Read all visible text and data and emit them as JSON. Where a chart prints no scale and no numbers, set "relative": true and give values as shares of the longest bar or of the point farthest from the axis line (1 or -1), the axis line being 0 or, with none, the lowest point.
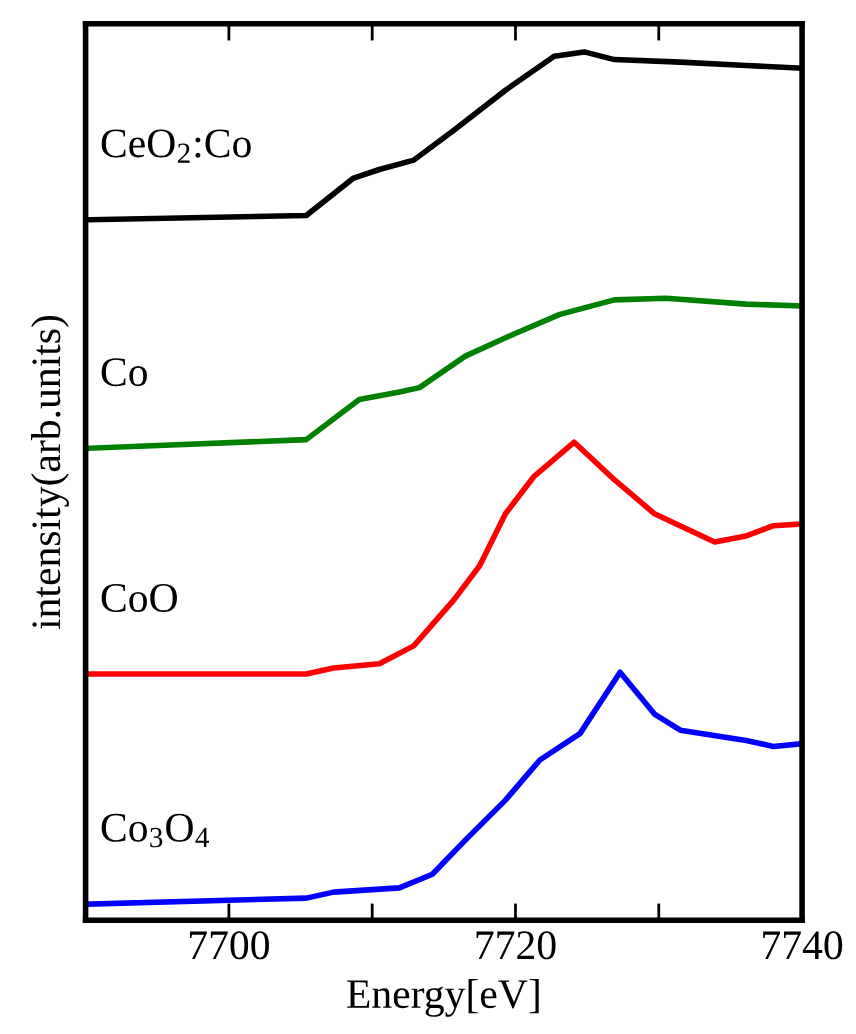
{
  "chart_data": {
    "type": "line",
    "relative": true,
    "xlabel": "Energy[eV]",
    "ylabel": "intensity(arb.units)",
    "xlim": [
      7690,
      7740
    ],
    "xticks": [
      7700,
      {
        "value": 7710,
        "label": null
      },
      7720,
      {
        "value": 7730,
        "label": null
      },
      7740
    ],
    "grid": false,
    "legend": false,
    "tick_labels": "x",
    "line_style": "solid",
    "marker": "none",
    "series": [
      {
        "name": "CeO$_{2}$:Co",
        "color": "#000000",
        "x": [
          7690.3,
          7705.4,
          7708.7,
          7710.5,
          7712.9,
          7715.7,
          7719.3,
          7722.7,
          7724.8,
          7726.9,
          7731.5,
          7736.1,
          7739.9
        ],
        "values": [
          0.803,
          0.808,
          0.852,
          0.862,
          0.873,
          0.908,
          0.955,
          0.995,
          1.0,
          0.991,
          0.988,
          0.984,
          0.981
        ]
      },
      {
        "name": "Co",
        "color": "#008000",
        "x": [
          7690.3,
          7705.4,
          7709.1,
          7711.9,
          7713.3,
          7716.5,
          7719.9,
          7723.1,
          7726.9,
          7730.5,
          7736.1,
          7739.9
        ],
        "values": [
          0.535,
          0.545,
          0.592,
          0.601,
          0.606,
          0.643,
          0.669,
          0.692,
          0.709,
          0.711,
          0.704,
          0.702
        ]
      },
      {
        "name": "CoO",
        "color": "#ff0000",
        "x": [
          7690.3,
          7705.4,
          7707.3,
          7710.5,
          7712.9,
          7715.7,
          7717.5,
          7719.3,
          7721.3,
          7724.1,
          7726.9,
          7729.7,
          7733.9,
          7736.1,
          7738.0,
          7739.9
        ],
        "values": [
          0.27,
          0.27,
          0.277,
          0.282,
          0.303,
          0.357,
          0.397,
          0.458,
          0.502,
          0.542,
          0.498,
          0.458,
          0.425,
          0.432,
          0.444,
          0.446
        ]
      },
      {
        "name": "Co$_{3}$O$_{4}$",
        "color": "#0000ff",
        "x": [
          7690.3,
          7705.4,
          7707.3,
          7711.9,
          7714.2,
          7716.5,
          7719.3,
          7721.7,
          7724.5,
          7727.3,
          7729.7,
          7731.5,
          7736.1,
          7738.0,
          7739.9
        ],
        "values": [
          0.0,
          0.007,
          0.014,
          0.019,
          0.035,
          0.075,
          0.122,
          0.169,
          0.2,
          0.272,
          0.223,
          0.204,
          0.192,
          0.185,
          0.188
        ]
      }
    ]
  }
}
